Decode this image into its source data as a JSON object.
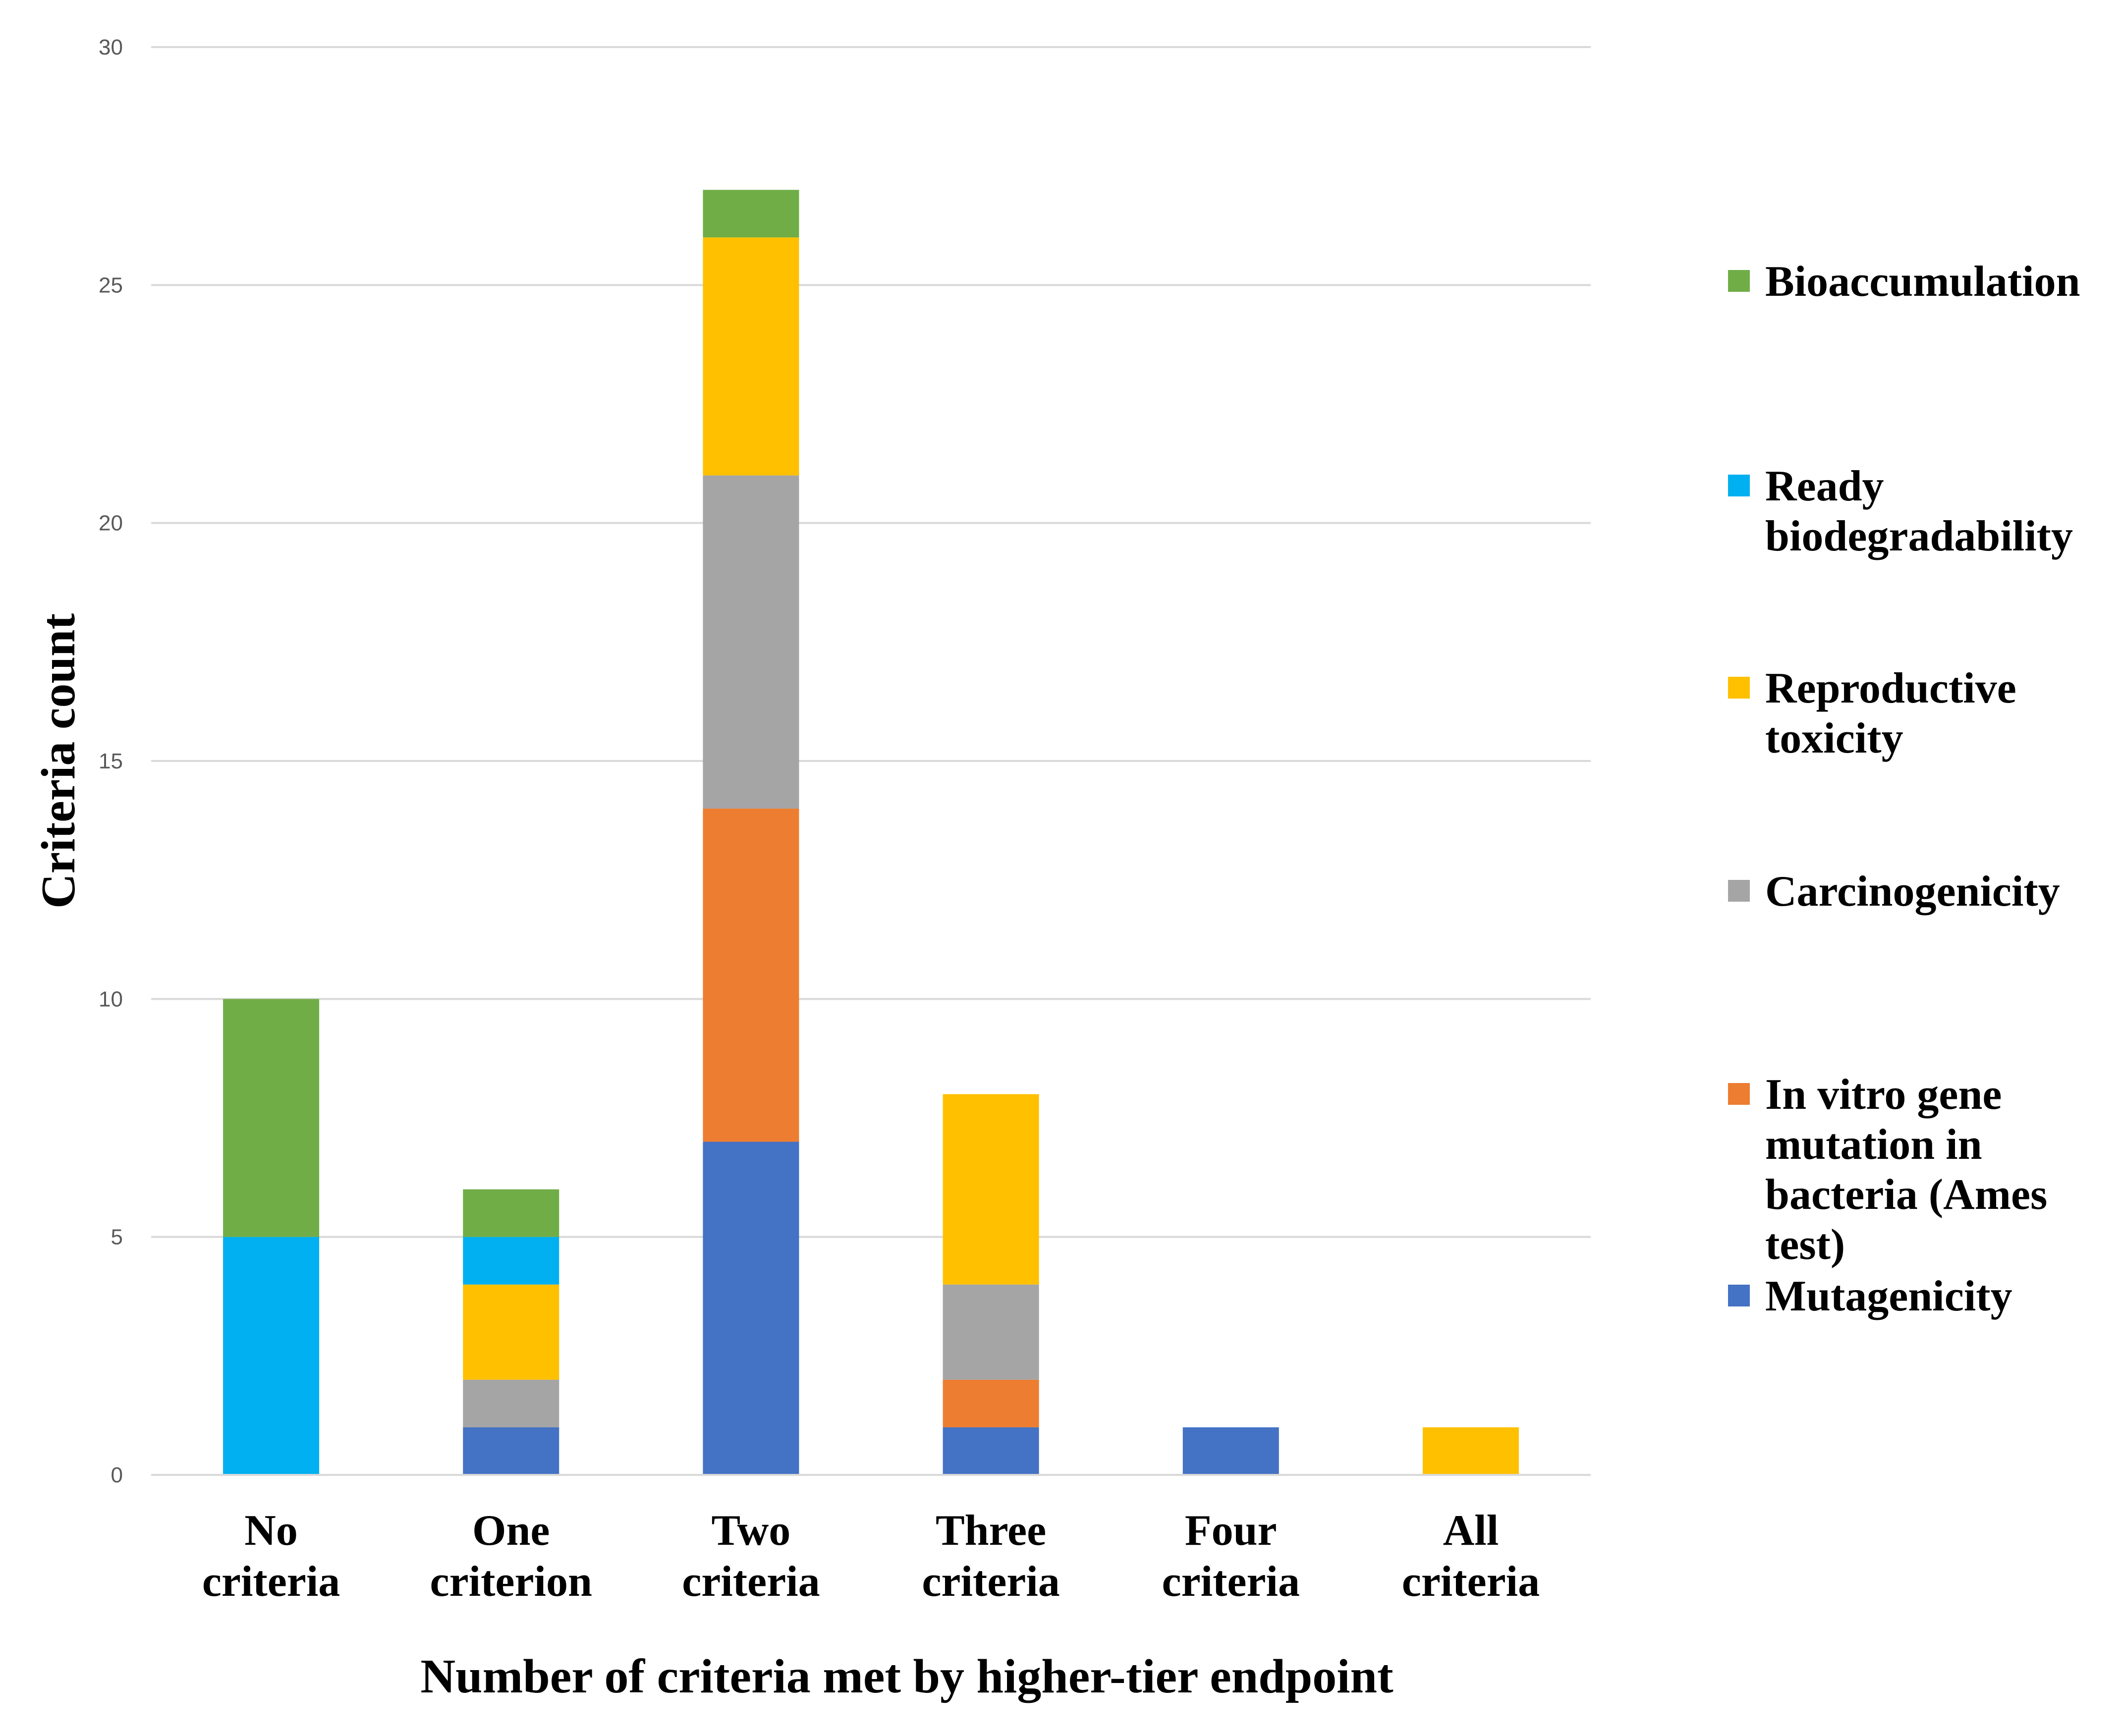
{
  "chart_data": {
    "type": "bar",
    "stacked": true,
    "categories": [
      [
        "No",
        "criteria"
      ],
      [
        "One",
        "criterion"
      ],
      [
        "Two",
        "criteria"
      ],
      [
        "Three",
        "criteria"
      ],
      [
        "Four",
        "criteria"
      ],
      [
        "All",
        "criteria"
      ]
    ],
    "series": [
      {
        "name": "Mutagenicity",
        "lines": [
          "Mutagenicity"
        ],
        "color": "#4472C4",
        "values": [
          0,
          1,
          7,
          1,
          1,
          0
        ]
      },
      {
        "name": "In vitro gene mutation in bacteria (Ames test)",
        "lines": [
          "In vitro gene",
          "mutation in",
          "bacteria (Ames",
          "test)"
        ],
        "color": "#ED7D31",
        "values": [
          0,
          0,
          7,
          1,
          0,
          0
        ]
      },
      {
        "name": "Carcinogenicity",
        "lines": [
          "Carcinogenicity"
        ],
        "color": "#A5A5A5",
        "values": [
          0,
          1,
          7,
          2,
          0,
          0
        ]
      },
      {
        "name": "Reproductive toxicity",
        "lines": [
          "Reproductive",
          "toxicity"
        ],
        "color": "#FFC000",
        "values": [
          0,
          2,
          5,
          4,
          0,
          1
        ]
      },
      {
        "name": "Ready biodegradability",
        "lines": [
          "Ready",
          "biodegradability"
        ],
        "color": "#00B0F0",
        "values": [
          5,
          1,
          0,
          0,
          0,
          0
        ]
      },
      {
        "name": "Bioaccumulation",
        "lines": [
          "Bioaccumulation"
        ],
        "color": "#70AD47",
        "values": [
          5,
          1,
          1,
          0,
          0,
          0
        ]
      }
    ],
    "legend_order": [
      "Bioaccumulation",
      "Ready biodegradability",
      "Reproductive toxicity",
      "Carcinogenicity",
      "In vitro gene mutation in bacteria (Ames test)",
      "Mutagenicity"
    ],
    "xlabel": "Number of criteria met by higher-tier endpoint",
    "ylabel": "Criteria count",
    "ylim": [
      0,
      30
    ],
    "yticks": [
      0,
      5,
      10,
      15,
      20,
      25,
      30
    ],
    "grid": true,
    "legend_position": "right"
  }
}
